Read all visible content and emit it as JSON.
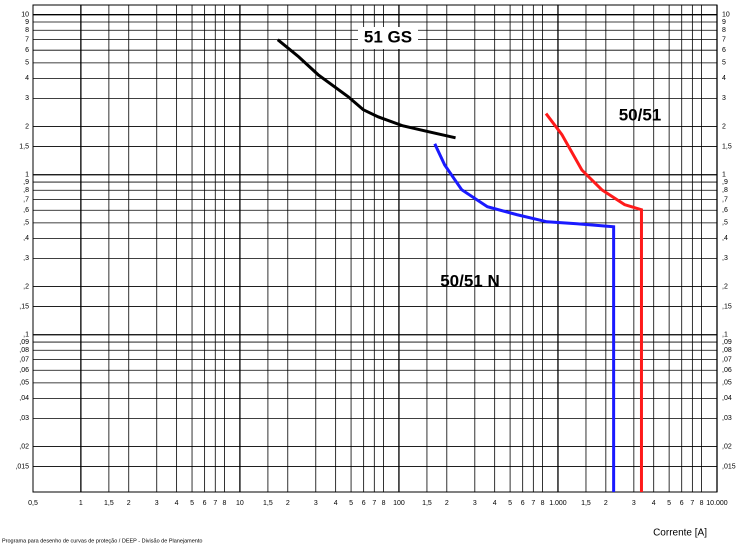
{
  "chart_data": {
    "type": "line",
    "xlabel": "Corrente [A]",
    "footer": "Programa para desenho de curvas de proteção / DEEP - Divisão de Planejamento",
    "xscale": "log",
    "yscale": "log",
    "grid": true,
    "xlim": [
      0.5,
      10000
    ],
    "ylim": [
      0.0104,
      11.5
    ],
    "xticks": [
      {
        "value": 0.5,
        "label": "0,5"
      },
      1,
      {
        "value": 1.5,
        "label": "1,5"
      },
      2,
      3,
      4,
      5,
      6,
      7,
      8,
      10,
      {
        "value": 15,
        "label": "1,5"
      },
      {
        "value": 20,
        "label": "2"
      },
      {
        "value": 30,
        "label": "3"
      },
      {
        "value": 40,
        "label": "4"
      },
      {
        "value": 50,
        "label": "5"
      },
      {
        "value": 60,
        "label": "6"
      },
      {
        "value": 70,
        "label": "7"
      },
      {
        "value": 80,
        "label": "8"
      },
      100,
      {
        "value": 150,
        "label": "1,5"
      },
      {
        "value": 200,
        "label": "2"
      },
      {
        "value": 300,
        "label": "3"
      },
      {
        "value": 400,
        "label": "4"
      },
      {
        "value": 500,
        "label": "5"
      },
      {
        "value": 600,
        "label": "6"
      },
      {
        "value": 700,
        "label": "7"
      },
      {
        "value": 800,
        "label": "8"
      },
      {
        "value": 1000,
        "label": "1.000"
      },
      {
        "value": 1500,
        "label": "1,5"
      },
      {
        "value": 2000,
        "label": "2"
      },
      {
        "value": 3000,
        "label": "3"
      },
      {
        "value": 4000,
        "label": "4"
      },
      {
        "value": 5000,
        "label": "5"
      },
      {
        "value": 6000,
        "label": "6"
      },
      {
        "value": 7000,
        "label": "7"
      },
      {
        "value": 8000,
        "label": "8"
      },
      {
        "value": 10000,
        "label": "10.000"
      }
    ],
    "yticks": [
      10,
      9,
      8,
      7,
      6,
      5,
      4,
      3,
      2,
      {
        "value": 1.5,
        "label": "1,5"
      },
      1,
      {
        "value": 0.9,
        "label": ",9"
      },
      {
        "value": 0.8,
        "label": ",8"
      },
      {
        "value": 0.7,
        "label": ",7"
      },
      {
        "value": 0.6,
        "label": ",6"
      },
      {
        "value": 0.5,
        "label": ",5"
      },
      {
        "value": 0.4,
        "label": ",4"
      },
      {
        "value": 0.3,
        "label": ",3"
      },
      {
        "value": 0.2,
        "label": ",2"
      },
      {
        "value": 0.15,
        "label": ",15"
      },
      {
        "value": 0.1,
        "label": ",1"
      },
      {
        "value": 0.09,
        "label": ",09"
      },
      {
        "value": 0.08,
        "label": ",08"
      },
      {
        "value": 0.07,
        "label": ",07"
      },
      {
        "value": 0.06,
        "label": ",06"
      },
      {
        "value": 0.05,
        "label": ",05"
      },
      {
        "value": 0.04,
        "label": ",04"
      },
      {
        "value": 0.03,
        "label": ",03"
      },
      {
        "value": 0.02,
        "label": ",02"
      },
      {
        "value": 0.015,
        "label": ",015"
      }
    ],
    "series": [
      {
        "name": "51 GS",
        "color": "#000000",
        "x": [
          17.3,
          23.4,
          31,
          48,
          59.6,
          74,
          106,
          152,
          227
        ],
        "values": [
          6.98,
          5.46,
          4.22,
          3.07,
          2.55,
          2.3,
          2.02,
          1.86,
          1.7
        ]
      },
      {
        "name": "50/51 N",
        "color": "#1a1aff",
        "x": [
          168,
          194,
          248,
          360,
          554,
          853,
          1315,
          2239,
          2239
        ],
        "values": [
          1.56,
          1.15,
          0.806,
          0.631,
          0.562,
          0.508,
          0.494,
          0.473,
          0.0104
        ]
      },
      {
        "name": "50/51",
        "color": "#ff1a1a",
        "x": [
          841,
          1059,
          1413,
          1884,
          2624,
          3350,
          3350
        ],
        "values": [
          2.41,
          1.78,
          1.07,
          0.806,
          0.65,
          0.604,
          0.0104
        ]
      }
    ]
  }
}
